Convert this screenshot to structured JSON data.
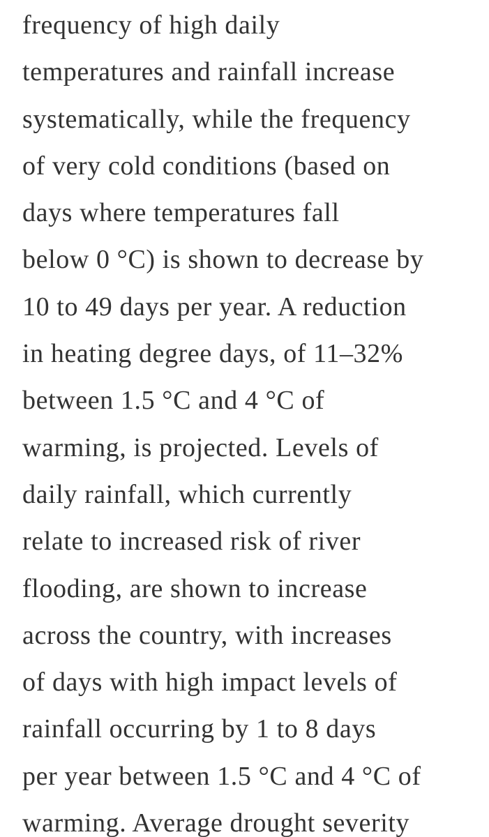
{
  "paragraph": {
    "lines": [
      "frequency of high daily",
      "temperatures and rainfall increase",
      "systematically, while the frequency",
      "of very cold conditions (based on",
      "days where temperatures fall",
      "below 0 °C) is shown to decrease by",
      "10 to 49 days per year. A reduction",
      "in heating degree days, of 11–32%",
      "between 1.5 °C and 4 °C of",
      "warming, is projected. Levels of",
      "daily rainfall, which currently",
      "relate to increased risk of river",
      "flooding, are shown to increase",
      "across the country, with increases",
      "of days with high impact levels of",
      "rainfall occurring by 1 to 8 days",
      "per year between 1.5 °C and 4 °C of",
      "warming. Average drought severity"
    ]
  }
}
